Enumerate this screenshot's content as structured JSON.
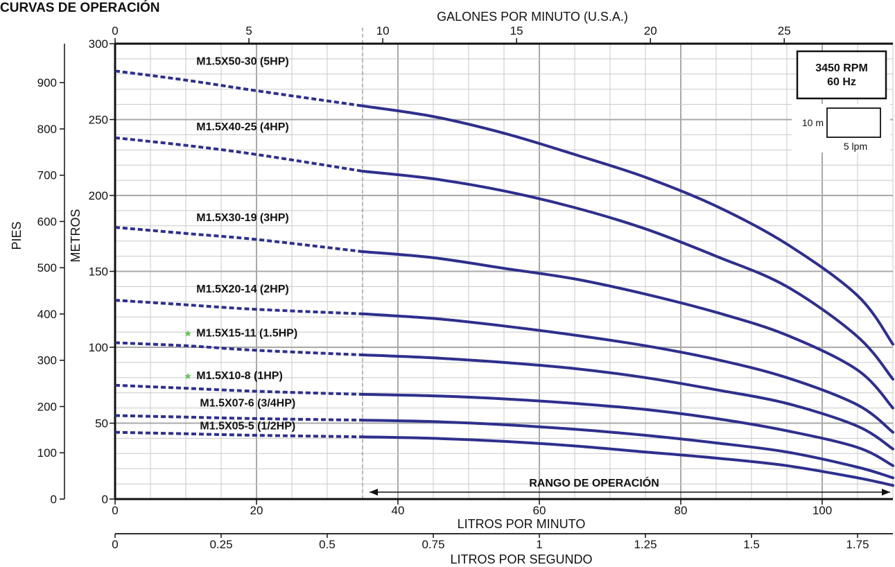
{
  "chart_data": {
    "type": "line",
    "title": "CURVAS DE OPERACIÓN",
    "x_primary": {
      "label": "LITROS POR MINUTO",
      "range": [
        0,
        110
      ],
      "ticks": [
        0,
        20,
        40,
        60,
        80,
        100
      ]
    },
    "x_top": {
      "label": "GALONES POR MINUTO (U.S.A.)",
      "range": [
        0,
        29.06
      ],
      "ticks": [
        0,
        5,
        10,
        15,
        20,
        25
      ]
    },
    "x_bottom2": {
      "label": "LITROS POR SEGUNDO",
      "range": [
        0,
        1.8333
      ],
      "ticks": [
        "0",
        "0.25",
        "0.5",
        "0.75",
        "1",
        "1.25",
        "1.5",
        "1.75"
      ],
      "tick_values": [
        0,
        0.25,
        0.5,
        0.75,
        1,
        1.25,
        1.5,
        1.75
      ]
    },
    "y_primary": {
      "label": "METROS",
      "range": [
        0,
        300
      ],
      "ticks": [
        0,
        50,
        100,
        150,
        200,
        250,
        300
      ]
    },
    "y_secondary": {
      "label": "PIES",
      "range": [
        0,
        984.25
      ],
      "ticks": [
        0,
        100,
        200,
        300,
        400,
        500,
        600,
        700,
        800,
        900
      ]
    },
    "grid": true,
    "info_box": {
      "line1": "3450 RPM",
      "line2": "60 Hz"
    },
    "scale_box": {
      "height_label": "10 m",
      "width_label": "5 lpm"
    },
    "operating_range": {
      "label": "RANGO DE OPERACIÓN",
      "x": [
        35,
        110
      ]
    },
    "dashed_until_x": 35,
    "curve_color": "#2e2f8c",
    "star_color": "#59c04a",
    "series": [
      {
        "name": "M1.5X50-30 (5HP)",
        "starred": false,
        "x": [
          0,
          10,
          20,
          35,
          45,
          55,
          65,
          75,
          85,
          95,
          105,
          110
        ],
        "y": [
          282,
          276,
          269,
          259,
          252,
          241,
          227,
          212,
          193,
          168,
          134,
          102
        ]
      },
      {
        "name": "M1.5X40-25 (4HP)",
        "starred": false,
        "x": [
          0,
          10,
          20,
          35,
          45,
          55,
          65,
          75,
          85,
          95,
          105,
          110
        ],
        "y": [
          238,
          233,
          227,
          216,
          211,
          203,
          192,
          178,
          160,
          140,
          107,
          79
        ]
      },
      {
        "name": "M1.5X30-19 (3HP)",
        "starred": false,
        "x": [
          0,
          10,
          20,
          35,
          45,
          55,
          65,
          75,
          85,
          95,
          105,
          110
        ],
        "y": [
          179,
          175,
          171,
          163,
          159,
          152,
          145,
          135,
          123,
          108,
          85,
          60
        ]
      },
      {
        "name": "M1.5X20-14 (2HP)",
        "starred": false,
        "x": [
          0,
          10,
          20,
          35,
          45,
          55,
          65,
          75,
          85,
          95,
          105,
          110
        ],
        "y": [
          131,
          128,
          125,
          122,
          119,
          114,
          108,
          101,
          92,
          80,
          62,
          44
        ]
      },
      {
        "name": "M1.5X15-11 (1.5HP)",
        "starred": true,
        "x": [
          0,
          10,
          20,
          35,
          45,
          55,
          65,
          75,
          85,
          95,
          105,
          110
        ],
        "y": [
          103,
          101,
          98,
          95,
          93,
          90,
          86,
          80,
          72,
          63,
          48,
          33
        ]
      },
      {
        "name": "M1.5X10-8 (1HP)",
        "starred": true,
        "x": [
          0,
          10,
          20,
          35,
          45,
          55,
          65,
          75,
          85,
          95,
          105,
          110
        ],
        "y": [
          75,
          73,
          71,
          69,
          68,
          66,
          63,
          59,
          53,
          45,
          34,
          22
        ]
      },
      {
        "name": "M1.5X07-6 (3/4HP)",
        "starred": false,
        "x": [
          0,
          10,
          20,
          35,
          45,
          55,
          65,
          75,
          85,
          95,
          105,
          110
        ],
        "y": [
          55,
          54,
          53,
          52,
          51,
          49,
          46,
          42,
          37,
          31,
          21,
          14
        ]
      },
      {
        "name": "M1.5X05-5 (1/2HP)",
        "starred": false,
        "x": [
          0,
          10,
          20,
          35,
          45,
          55,
          65,
          75,
          85,
          95,
          105,
          110
        ],
        "y": [
          44,
          43,
          42,
          41,
          40,
          38,
          35,
          31,
          27,
          22,
          14,
          9
        ]
      }
    ],
    "series_labels_at": [
      {
        "x": 11.5,
        "y": 286
      },
      {
        "x": 11.5,
        "y": 243
      },
      {
        "x": 11.5,
        "y": 183
      },
      {
        "x": 11.5,
        "y": 136
      },
      {
        "x": 11.5,
        "y": 107
      },
      {
        "x": 11.5,
        "y": 79
      },
      {
        "x": 12,
        "y": 61
      },
      {
        "x": 12,
        "y": 46
      }
    ]
  }
}
